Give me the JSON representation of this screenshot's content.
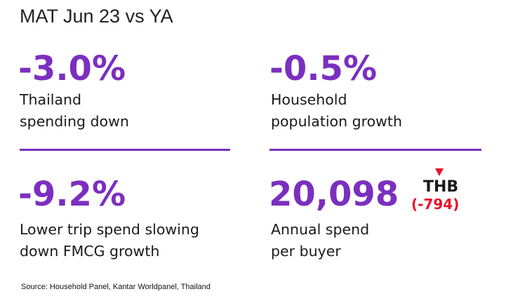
{
  "header": {
    "title": "MAT Jun 23 vs YA"
  },
  "colors": {
    "accent": "#7b2fbf",
    "negative": "#e8102a",
    "text": "#1a1a1a"
  },
  "stats": [
    {
      "value": "-3.0%",
      "line1": "Thailand",
      "line2": "spending down"
    },
    {
      "value": "-0.5%",
      "line1": "Household",
      "line2": "population growth"
    },
    {
      "value": "-9.2%",
      "line1": "Lower trip spend slowing",
      "line2": "down FMCG growth"
    },
    {
      "value": "20,098",
      "unit": "THB",
      "change": "(-794)",
      "change_indicator": "down-triangle-icon",
      "line1": "Annual spend",
      "line2": "per buyer"
    }
  ],
  "source": "Source: Household Panel, Kantar Worldpanel, Thailand"
}
